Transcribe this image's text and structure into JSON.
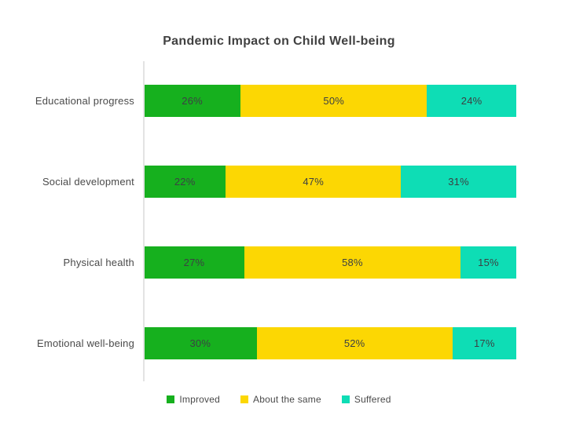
{
  "page": {
    "background": "#ffffff"
  },
  "chart_data": {
    "type": "bar",
    "orientation": "horizontal",
    "stacked": true,
    "title": "Pandemic Impact on Child Well-being",
    "categories": [
      "Educational progress",
      "Social development",
      "Physical health",
      "Emotional well-being"
    ],
    "series": [
      {
        "name": "Improved",
        "color": "#16b01e",
        "values": [
          26,
          22,
          27,
          30
        ]
      },
      {
        "name": "About the same",
        "color": "#fcd703",
        "values": [
          50,
          47,
          58,
          52
        ]
      },
      {
        "name": "Suffered",
        "color": "#0eddb5",
        "values": [
          24,
          31,
          15,
          17
        ]
      }
    ],
    "value_suffix": "%",
    "xlim": [
      0,
      100
    ],
    "grid": false,
    "legend_position": "bottom"
  },
  "colors": {
    "title_text": "#414141",
    "category_text": "#4a4a4a",
    "bar_value_text": "#3c4043",
    "axis_line": "#e3e3e3",
    "background": "#ffffff"
  }
}
